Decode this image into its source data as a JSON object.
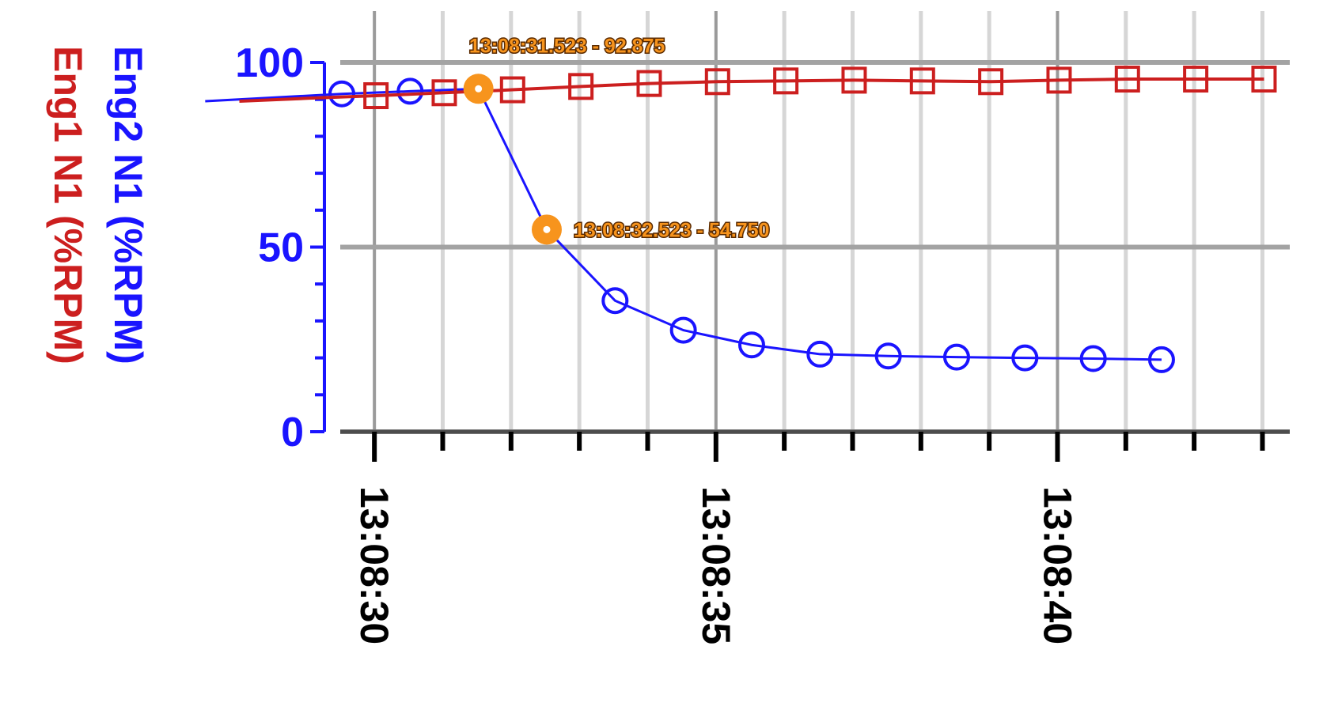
{
  "chart_data": {
    "type": "line",
    "ylabel_lines": [
      "Eng2 N1 (%RPM)",
      "Eng1 N1 (%RPM)"
    ],
    "ylim": [
      0,
      100
    ],
    "yticks": [
      "0",
      "50",
      "100"
    ],
    "xlim": [
      "13:08:29.5",
      "13:08:43.4"
    ],
    "xticks": [
      "13:08:30",
      "13:08:35",
      "13:08:40"
    ],
    "grid": true,
    "series": [
      {
        "name": "Eng2 N1 (%RPM)",
        "color": "#1a14ff",
        "marker": "circle",
        "x": [
          "13:08:27.523",
          "13:08:28.523",
          "13:08:29.523",
          "13:08:30.523",
          "13:08:31.523",
          "13:08:32.523",
          "13:08:33.523",
          "13:08:34.523",
          "13:08:35.523",
          "13:08:36.523",
          "13:08:37.523",
          "13:08:38.523",
          "13:08:39.523",
          "13:08:40.523",
          "13:08:41.523"
        ],
        "values": [
          89.5,
          90.5,
          91.5,
          92.2,
          92.875,
          54.75,
          35.5,
          27.5,
          23.5,
          21.0,
          20.5,
          20.2,
          20.0,
          19.8,
          19.5
        ]
      },
      {
        "name": "Eng1 N1 (%RPM)",
        "color": "#cc1f1f",
        "marker": "square",
        "x": [
          "13:08:28.023",
          "13:08:29.023",
          "13:08:30.023",
          "13:08:31.023",
          "13:08:32.023",
          "13:08:33.023",
          "13:08:34.023",
          "13:08:35.023",
          "13:08:36.023",
          "13:08:37.023",
          "13:08:38.023",
          "13:08:39.023",
          "13:08:40.023",
          "13:08:41.023",
          "13:08:42.023",
          "13:08:43.023"
        ],
        "values": [
          89.5,
          90.3,
          91.0,
          91.8,
          92.6,
          93.5,
          94.3,
          94.8,
          95.0,
          95.2,
          95.0,
          94.8,
          95.2,
          95.5,
          95.5,
          95.5
        ]
      }
    ],
    "annotations": [
      {
        "label": "13:08:31.523 - 92.875",
        "x": "13:08:31.523",
        "y": 92.875
      },
      {
        "label": "13:08:32.523 - 54.750",
        "x": "13:08:32.523",
        "y": 54.75
      }
    ],
    "annotation_color": "#f7941d"
  }
}
